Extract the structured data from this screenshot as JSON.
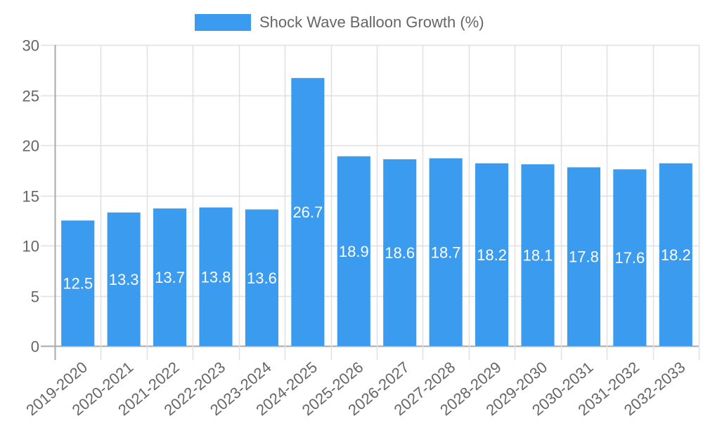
{
  "legend": {
    "label": "Shock Wave Balloon Growth (%)",
    "color": "#3a9bef"
  },
  "chart_data": {
    "type": "bar",
    "title": "",
    "xlabel": "",
    "ylabel": "",
    "categories": [
      "2019-2020",
      "2020-2021",
      "2021-2022",
      "2022-2023",
      "2023-2024",
      "2024-2025",
      "2025-2026",
      "2026-2027",
      "2027-2028",
      "2028-2029",
      "2029-2030",
      "2030-2031",
      "2031-2032",
      "2032-2033"
    ],
    "series": [
      {
        "name": "Shock Wave Balloon Growth (%)",
        "color": "#3a9bef",
        "values": [
          12.5,
          13.3,
          13.7,
          13.8,
          13.6,
          26.7,
          18.9,
          18.6,
          18.7,
          18.2,
          18.1,
          17.8,
          17.6,
          18.2
        ]
      }
    ],
    "ylim": [
      0,
      30
    ],
    "yticks": [
      0,
      5,
      10,
      15,
      20,
      25,
      30
    ],
    "grid": true,
    "legend_position": "top",
    "data_labels": true
  }
}
